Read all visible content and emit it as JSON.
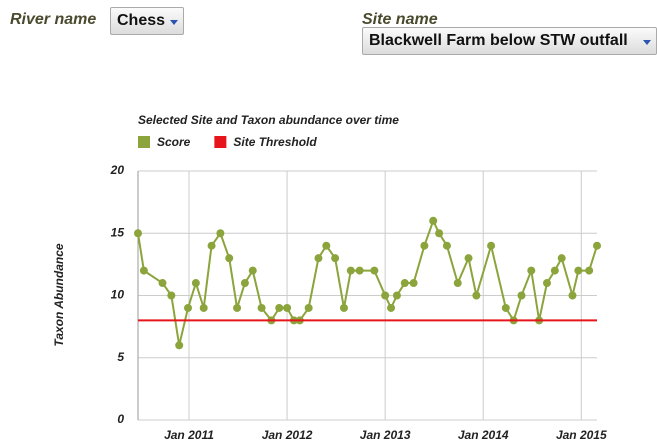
{
  "controls": {
    "river_label": "River name",
    "river_value": "Chess",
    "site_label": "Site name",
    "site_value": "Blackwell Farm below STW outfall"
  },
  "chart_data": {
    "type": "line",
    "title": "Selected Site and Taxon abundance over time",
    "y_label": "Taxon Abundance",
    "x": [
      2010.48,
      2010.54,
      2010.73,
      2010.82,
      2010.9,
      2010.99,
      2011.07,
      2011.15,
      2011.23,
      2011.32,
      2011.41,
      2011.49,
      2011.57,
      2011.65,
      2011.74,
      2011.84,
      2011.92,
      2012.0,
      2012.07,
      2012.13,
      2012.22,
      2012.32,
      2012.4,
      2012.49,
      2012.58,
      2012.65,
      2012.74,
      2012.89,
      2013.0,
      2013.06,
      2013.12,
      2013.2,
      2013.29,
      2013.4,
      2013.49,
      2013.55,
      2013.63,
      2013.74,
      2013.85,
      2013.93,
      2014.08,
      2014.23,
      2014.31,
      2014.39,
      2014.49,
      2014.57,
      2014.65,
      2014.73,
      2014.8,
      2014.91,
      2014.97,
      2015.08,
      2015.16
    ],
    "series": [
      {
        "name": "Score",
        "color": "#8ba43c",
        "markers": true,
        "values": [
          15,
          12,
          11,
          10,
          6,
          9,
          11,
          9,
          14,
          15,
          13,
          9,
          11,
          12,
          9,
          8,
          9,
          9,
          8,
          8,
          9,
          13,
          14,
          13,
          9,
          12,
          12,
          12,
          10,
          9,
          10,
          11,
          11,
          14,
          16,
          15,
          14,
          11,
          13,
          10,
          14,
          9,
          8,
          10,
          12,
          8,
          11,
          12,
          13,
          10,
          12,
          12,
          14
        ]
      },
      {
        "name": "Site Threshold",
        "color": "#e8141b",
        "markers": false,
        "values": [
          8,
          8,
          8,
          8,
          8,
          8,
          8,
          8,
          8,
          8,
          8,
          8,
          8,
          8,
          8,
          8,
          8,
          8,
          8,
          8,
          8,
          8,
          8,
          8,
          8,
          8,
          8,
          8,
          8,
          8,
          8,
          8,
          8,
          8,
          8,
          8,
          8,
          8,
          8,
          8,
          8,
          8,
          8,
          8,
          8,
          8,
          8,
          8,
          8,
          8,
          8,
          8,
          8
        ]
      }
    ],
    "xlim": [
      2010.48,
      2015.16
    ],
    "xticks": [
      {
        "value": 2011,
        "label": "Jan 2011"
      },
      {
        "value": 2012,
        "label": "Jan 2012"
      },
      {
        "value": 2013,
        "label": "Jan 2013"
      },
      {
        "value": 2014,
        "label": "Jan 2014"
      },
      {
        "value": 2015,
        "label": "Jan 2015"
      }
    ],
    "ylim": [
      0,
      20
    ],
    "yticks": [
      0,
      5,
      10,
      15,
      20
    ],
    "grid": true
  }
}
